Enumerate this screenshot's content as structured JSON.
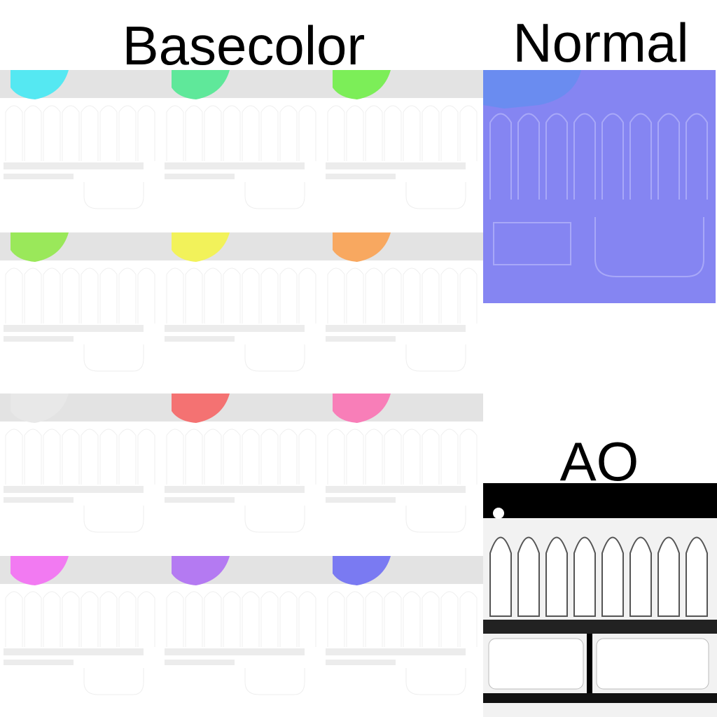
{
  "labels": {
    "basecolor": "Basecolor",
    "normal": "Normal",
    "ao": "AO"
  }
}
